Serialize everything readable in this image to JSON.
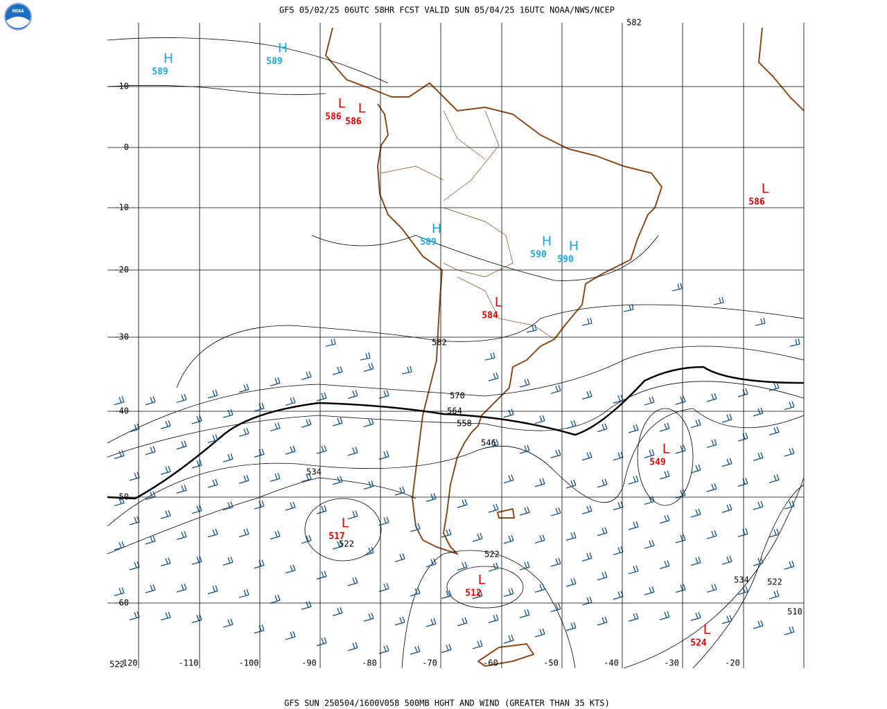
{
  "header": {
    "title": "GFS 05/02/25 06UTC 58HR FCST VALID SUN 05/04/25 16UTC NOAA/NWS/NCEP",
    "logo": "NOAA"
  },
  "map": {
    "latitudes": [
      "10",
      "0",
      "-10",
      "-20",
      "-30",
      "-40",
      "-50",
      "-60"
    ],
    "longitudes": [
      "-120",
      "-110",
      "-100",
      "-90",
      "-80",
      "-70",
      "-60",
      "-50",
      "-40",
      "-30",
      "-20"
    ],
    "colors": {
      "H": "#1aa7e0",
      "L": "#e00000"
    },
    "pressure_centers": [
      {
        "symbol": "H",
        "value": "589"
      },
      {
        "symbol": "H",
        "value": "589"
      },
      {
        "symbol": "L",
        "value": "586"
      },
      {
        "symbol": "L",
        "value": "586"
      },
      {
        "symbol": "L",
        "value": "586"
      },
      {
        "symbol": "H",
        "value": "589"
      },
      {
        "symbol": "H",
        "value": "590"
      },
      {
        "symbol": "H",
        "value": "590"
      },
      {
        "symbol": "L",
        "value": "584"
      },
      {
        "symbol": "L",
        "value": "549"
      },
      {
        "symbol": "L",
        "value": "517"
      },
      {
        "symbol": "L",
        "value": "512"
      },
      {
        "symbol": "L",
        "value": "524"
      }
    ],
    "contour_labels": [
      "582",
      "582",
      "570",
      "564",
      "558",
      "546",
      "534",
      "522",
      "522",
      "534",
      "522",
      "510",
      "522"
    ]
  },
  "footer": {
    "caption": "GFS SUN 250504/1600V058 500MB HGHT AND WIND (GREATER THAN 35 KTS)"
  }
}
